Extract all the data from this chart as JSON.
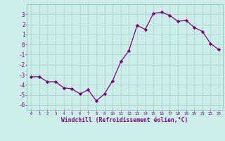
{
  "x": [
    0,
    1,
    2,
    3,
    4,
    5,
    6,
    7,
    8,
    9,
    10,
    11,
    12,
    13,
    14,
    15,
    16,
    17,
    18,
    19,
    20,
    21,
    22,
    23
  ],
  "y": [
    -3.2,
    -3.2,
    -3.7,
    -3.7,
    -4.3,
    -4.4,
    -4.9,
    -4.5,
    -5.6,
    -4.9,
    -3.6,
    -1.7,
    -0.6,
    1.9,
    1.5,
    3.1,
    3.2,
    2.9,
    2.3,
    2.4,
    1.7,
    1.3,
    0.1,
    -0.5
  ],
  "line_color": "#800080",
  "marker": "D",
  "marker_size": 2.2,
  "bg_color": "#cceee8",
  "grid_color": "#aad4ce",
  "tick_label_color": "#800080",
  "xlabel": "Windchill (Refroidissement éolien,°C)",
  "xlabel_color": "#800080",
  "ylim": [
    -6.5,
    4.0
  ],
  "xlim": [
    -0.5,
    23.5
  ],
  "yticks": [
    -6,
    -5,
    -4,
    -3,
    -2,
    -1,
    0,
    1,
    2,
    3
  ],
  "xticks": [
    0,
    1,
    2,
    3,
    4,
    5,
    6,
    7,
    8,
    9,
    10,
    11,
    12,
    13,
    14,
    15,
    16,
    17,
    18,
    19,
    20,
    21,
    22,
    23
  ]
}
